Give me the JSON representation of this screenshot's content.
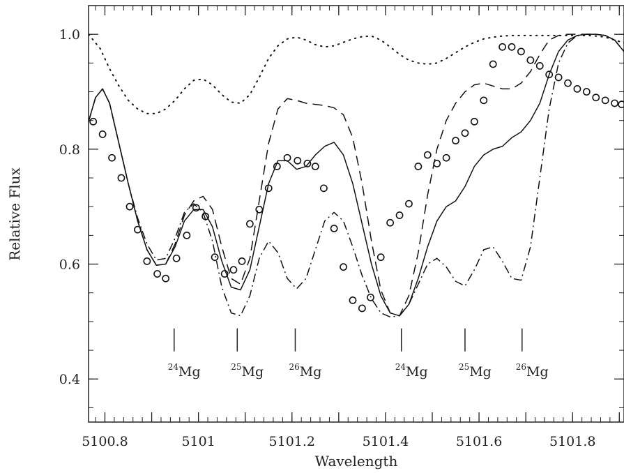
{
  "chart_data": {
    "type": "line",
    "xlabel": "Wavelength",
    "ylabel": "Relative Flux",
    "xlim": [
      5100.765,
      5101.91
    ],
    "ylim": [
      0.325,
      1.05
    ],
    "x_ticks": [
      {
        "value": 5100.8,
        "label": "5100.8"
      },
      {
        "value": 5101.0,
        "label": "5101"
      },
      {
        "value": 5101.2,
        "label": "5101.2"
      },
      {
        "value": 5101.4,
        "label": "5101.4"
      },
      {
        "value": 5101.6,
        "label": "5101.6"
      },
      {
        "value": 5101.8,
        "label": "5101.8"
      }
    ],
    "y_ticks": [
      {
        "value": 0.4,
        "label": "0.4"
      },
      {
        "value": 0.6,
        "label": "0.6"
      },
      {
        "value": 0.8,
        "label": "0.8"
      },
      {
        "value": 1.0,
        "label": "1.0"
      }
    ],
    "series": [
      {
        "style": "solid",
        "color": "#111111",
        "x": [
          5100.765,
          5100.78,
          5100.795,
          5100.81,
          5100.83,
          5100.85,
          5100.87,
          5100.89,
          5100.91,
          5100.93,
          5100.95,
          5100.97,
          5100.99,
          5101.01,
          5101.03,
          5101.05,
          5101.07,
          5101.09,
          5101.11,
          5101.13,
          5101.15,
          5101.17,
          5101.19,
          5101.21,
          5101.23,
          5101.25,
          5101.27,
          5101.29,
          5101.31,
          5101.33,
          5101.35,
          5101.37,
          5101.39,
          5101.41,
          5101.43,
          5101.45,
          5101.47,
          5101.49,
          5101.51,
          5101.53,
          5101.55,
          5101.57,
          5101.59,
          5101.61,
          5101.63,
          5101.65,
          5101.67,
          5101.69,
          5101.71,
          5101.73,
          5101.75,
          5101.77,
          5101.79,
          5101.81,
          5101.83,
          5101.85,
          5101.87,
          5101.89,
          5101.91
        ],
        "y": [
          0.848,
          0.89,
          0.905,
          0.88,
          0.81,
          0.74,
          0.675,
          0.625,
          0.598,
          0.6,
          0.63,
          0.675,
          0.695,
          0.695,
          0.665,
          0.605,
          0.56,
          0.555,
          0.59,
          0.665,
          0.74,
          0.78,
          0.78,
          0.765,
          0.77,
          0.79,
          0.805,
          0.812,
          0.79,
          0.74,
          0.67,
          0.6,
          0.545,
          0.515,
          0.51,
          0.53,
          0.575,
          0.63,
          0.675,
          0.7,
          0.71,
          0.735,
          0.77,
          0.79,
          0.8,
          0.805,
          0.82,
          0.83,
          0.85,
          0.88,
          0.93,
          0.97,
          0.99,
          0.998,
          1.0,
          1.0,
          0.998,
          0.99,
          0.97
        ]
      },
      {
        "style": "dashed",
        "color": "#111111",
        "x": [
          5100.765,
          5100.78,
          5100.795,
          5100.81,
          5100.83,
          5100.85,
          5100.87,
          5100.89,
          5100.91,
          5100.93,
          5100.95,
          5100.97,
          5100.99,
          5101.01,
          5101.03,
          5101.05,
          5101.07,
          5101.09,
          5101.11,
          5101.13,
          5101.15,
          5101.17,
          5101.19,
          5101.21,
          5101.23,
          5101.25,
          5101.27,
          5101.29,
          5101.31,
          5101.33,
          5101.35,
          5101.37,
          5101.39,
          5101.41,
          5101.43,
          5101.45,
          5101.47,
          5101.49,
          5101.51,
          5101.53,
          5101.55,
          5101.57,
          5101.59,
          5101.61,
          5101.63,
          5101.65,
          5101.67,
          5101.69,
          5101.71,
          5101.73,
          5101.75,
          5101.77,
          5101.79,
          5101.81,
          5101.83,
          5101.85,
          5101.87,
          5101.89,
          5101.91
        ],
        "y": [
          0.848,
          0.89,
          0.905,
          0.88,
          0.81,
          0.74,
          0.675,
          0.625,
          0.598,
          0.6,
          0.635,
          0.685,
          0.71,
          0.718,
          0.695,
          0.63,
          0.575,
          0.565,
          0.61,
          0.71,
          0.81,
          0.87,
          0.888,
          0.885,
          0.88,
          0.878,
          0.876,
          0.872,
          0.86,
          0.82,
          0.74,
          0.64,
          0.555,
          0.515,
          0.51,
          0.545,
          0.62,
          0.72,
          0.8,
          0.85,
          0.88,
          0.9,
          0.912,
          0.915,
          0.91,
          0.905,
          0.905,
          0.915,
          0.935,
          0.965,
          0.99,
          0.998,
          1.0,
          1.0,
          1.0,
          1.0,
          0.998,
          0.99,
          0.97
        ]
      },
      {
        "style": "dashdot",
        "color": "#111111",
        "x": [
          5100.765,
          5100.78,
          5100.795,
          5100.81,
          5100.83,
          5100.85,
          5100.87,
          5100.89,
          5100.91,
          5100.93,
          5100.95,
          5100.97,
          5100.99,
          5101.01,
          5101.03,
          5101.05,
          5101.07,
          5101.09,
          5101.11,
          5101.13,
          5101.15,
          5101.17,
          5101.19,
          5101.21,
          5101.23,
          5101.25,
          5101.27,
          5101.29,
          5101.31,
          5101.33,
          5101.35,
          5101.37,
          5101.39,
          5101.41,
          5101.43,
          5101.45,
          5101.47,
          5101.49,
          5101.51,
          5101.53,
          5101.55,
          5101.57,
          5101.59,
          5101.61,
          5101.63,
          5101.65,
          5101.67,
          5101.69,
          5101.71,
          5101.73,
          5101.75,
          5101.77,
          5101.79,
          5101.81,
          5101.83,
          5101.85,
          5101.87,
          5101.89,
          5101.91
        ],
        "y": [
          0.848,
          0.89,
          0.905,
          0.88,
          0.81,
          0.74,
          0.68,
          0.635,
          0.607,
          0.61,
          0.645,
          0.69,
          0.705,
          0.69,
          0.64,
          0.56,
          0.515,
          0.51,
          0.545,
          0.61,
          0.64,
          0.62,
          0.575,
          0.557,
          0.575,
          0.625,
          0.675,
          0.69,
          0.675,
          0.63,
          0.58,
          0.54,
          0.515,
          0.508,
          0.51,
          0.53,
          0.565,
          0.6,
          0.61,
          0.595,
          0.57,
          0.562,
          0.59,
          0.625,
          0.63,
          0.605,
          0.575,
          0.572,
          0.63,
          0.75,
          0.87,
          0.95,
          0.985,
          0.998,
          1.0,
          1.0,
          0.998,
          0.99,
          0.97
        ]
      },
      {
        "style": "dotted",
        "color": "#111111",
        "x": [
          5100.765,
          5100.79,
          5100.81,
          5100.83,
          5100.85,
          5100.87,
          5100.89,
          5100.91,
          5100.93,
          5100.95,
          5100.97,
          5100.99,
          5101.01,
          5101.03,
          5101.05,
          5101.07,
          5101.09,
          5101.11,
          5101.13,
          5101.15,
          5101.17,
          5101.19,
          5101.21,
          5101.23,
          5101.25,
          5101.27,
          5101.29,
          5101.31,
          5101.33,
          5101.35,
          5101.37,
          5101.39,
          5101.41,
          5101.43,
          5101.45,
          5101.47,
          5101.49,
          5101.51,
          5101.53,
          5101.55,
          5101.57,
          5101.59,
          5101.61,
          5101.63,
          5101.65,
          5101.67,
          5101.69,
          5101.71,
          5101.73,
          5101.75,
          5101.77,
          5101.79,
          5101.81,
          5101.83,
          5101.85,
          5101.87,
          5101.89,
          5101.91
        ],
        "y": [
          1.0,
          0.975,
          0.94,
          0.91,
          0.885,
          0.87,
          0.862,
          0.862,
          0.87,
          0.885,
          0.905,
          0.92,
          0.922,
          0.912,
          0.895,
          0.882,
          0.88,
          0.895,
          0.925,
          0.958,
          0.98,
          0.992,
          0.995,
          0.99,
          0.982,
          0.978,
          0.98,
          0.986,
          0.992,
          0.996,
          0.997,
          0.99,
          0.978,
          0.965,
          0.955,
          0.95,
          0.948,
          0.95,
          0.958,
          0.968,
          0.978,
          0.986,
          0.992,
          0.995,
          0.997,
          0.998,
          0.998,
          0.998,
          0.998,
          0.998,
          0.998,
          0.998,
          0.998,
          0.998,
          0.997,
          0.995,
          0.99,
          0.985
        ]
      },
      {
        "style": "markers",
        "marker": "circle",
        "color": "#111111",
        "x": [
          5100.775,
          5100.795,
          5100.815,
          5100.835,
          5100.853,
          5100.87,
          5100.89,
          5100.912,
          5100.93,
          5100.953,
          5100.975,
          5100.995,
          5101.015,
          5101.035,
          5101.056,
          5101.075,
          5101.093,
          5101.11,
          5101.13,
          5101.15,
          5101.168,
          5101.19,
          5101.212,
          5101.233,
          5101.25,
          5101.268,
          5101.29,
          5101.31,
          5101.33,
          5101.35,
          5101.368,
          5101.39,
          5101.41,
          5101.43,
          5101.45,
          5101.47,
          5101.49,
          5101.51,
          5101.53,
          5101.55,
          5101.57,
          5101.59,
          5101.61,
          5101.63,
          5101.65,
          5101.67,
          5101.69,
          5101.71,
          5101.73,
          5101.75,
          5101.77,
          5101.79,
          5101.81,
          5101.83,
          5101.85,
          5101.87,
          5101.89,
          5101.905
        ],
        "y": [
          0.848,
          0.826,
          0.785,
          0.75,
          0.7,
          0.66,
          0.605,
          0.583,
          0.575,
          0.61,
          0.65,
          0.698,
          0.683,
          0.612,
          0.583,
          0.59,
          0.605,
          0.67,
          0.695,
          0.732,
          0.77,
          0.785,
          0.78,
          0.775,
          0.77,
          0.732,
          0.662,
          0.595,
          0.537,
          0.523,
          0.542,
          0.612,
          0.672,
          0.685,
          0.705,
          0.77,
          0.79,
          0.775,
          0.785,
          0.815,
          0.828,
          0.848,
          0.885,
          0.948,
          0.978,
          0.978,
          0.97,
          0.955,
          0.945,
          0.93,
          0.925,
          0.915,
          0.905,
          0.9,
          0.89,
          0.885,
          0.88,
          0.878
        ]
      }
    ],
    "annotations": [
      {
        "x": 5100.948,
        "isotope": "24",
        "element": "Mg"
      },
      {
        "x": 5101.083,
        "isotope": "25",
        "element": "Mg"
      },
      {
        "x": 5101.207,
        "isotope": "26",
        "element": "Mg"
      },
      {
        "x": 5101.434,
        "isotope": "24",
        "element": "Mg"
      },
      {
        "x": 5101.57,
        "isotope": "25",
        "element": "Mg"
      },
      {
        "x": 5101.692,
        "isotope": "26",
        "element": "Mg"
      }
    ]
  }
}
